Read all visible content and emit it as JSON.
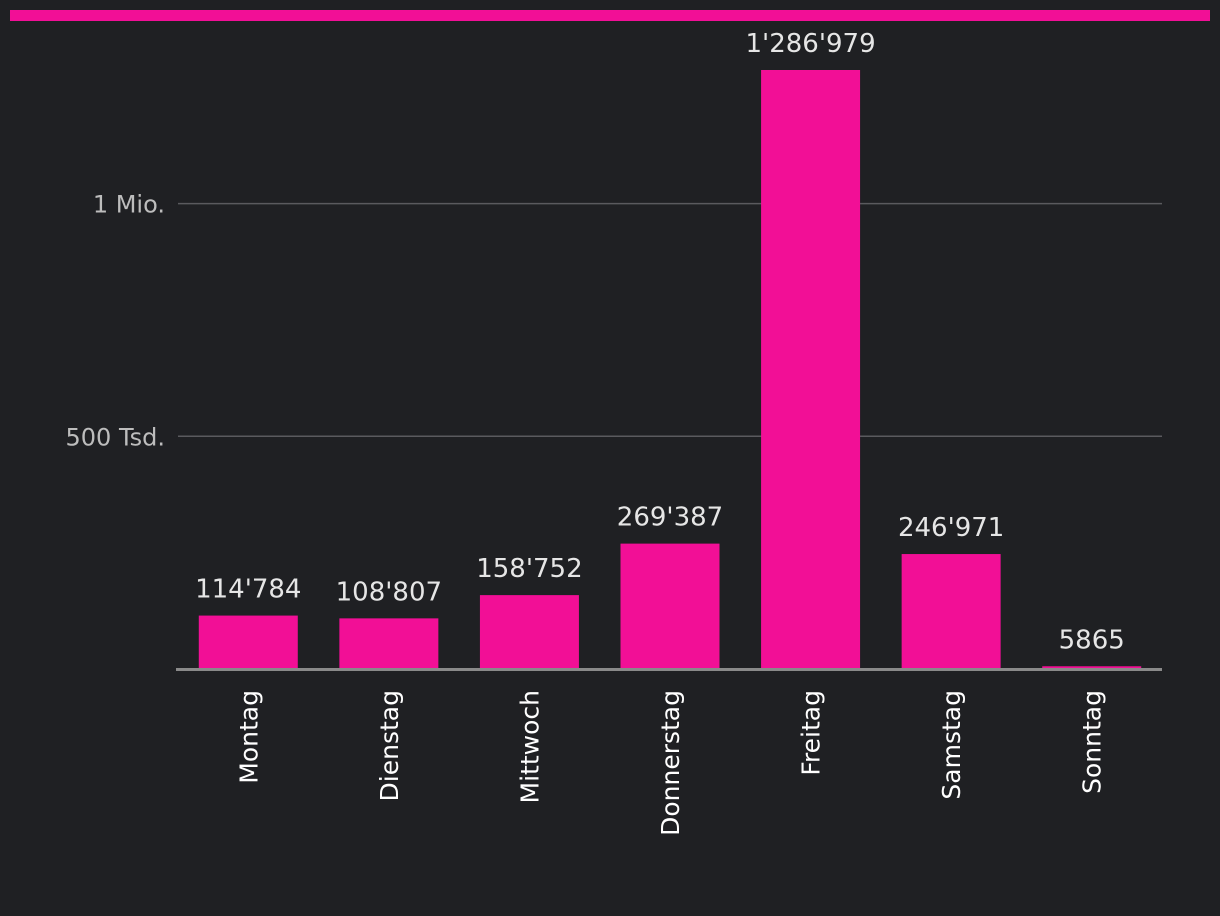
{
  "colors": {
    "background": "#1f2023",
    "accent": "#f20f96",
    "gridline": "#5a5a5e",
    "baseline": "#8a8a8a",
    "tick_text": "#bdbdbd",
    "label_text": "#e6e6e6"
  },
  "chart_data": {
    "type": "bar",
    "categories": [
      "Montag",
      "Dienstag",
      "Mittwoch",
      "Donnerstag",
      "Freitag",
      "Samstag",
      "Sonntag"
    ],
    "values": [
      114784,
      108807,
      158752,
      269387,
      1286979,
      246971,
      5865
    ],
    "value_labels": [
      "114'784",
      "108'807",
      "158'752",
      "269'387",
      "1'286'979",
      "246'971",
      "5865"
    ],
    "yticks": [
      {
        "value": 500000,
        "label": "500 Tsd."
      },
      {
        "value": 1000000,
        "label": "1 Mio."
      }
    ],
    "ylim": [
      0,
      1286979
    ],
    "grid": true,
    "legend": "none",
    "title": "",
    "xlabel": "",
    "ylabel": ""
  }
}
